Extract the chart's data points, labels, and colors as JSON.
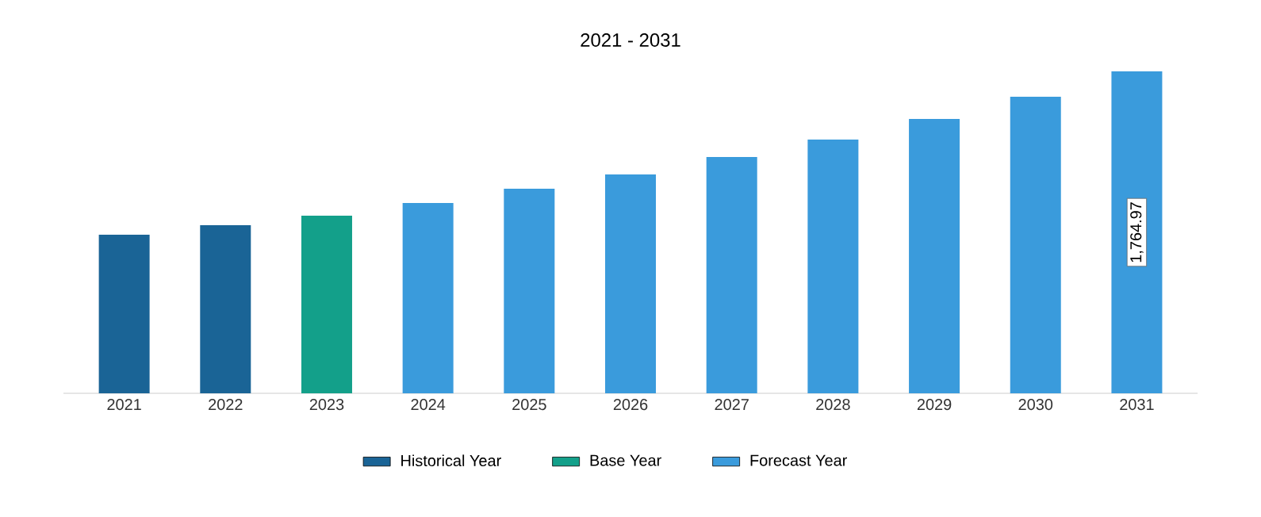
{
  "chart_data": {
    "type": "bar",
    "title": "2021 - 2031",
    "categories": [
      "2021",
      "2022",
      "2023",
      "2024",
      "2025",
      "2026",
      "2027",
      "2028",
      "2029",
      "2030",
      "2031"
    ],
    "legend": "bottom",
    "series": [
      {
        "name": "Historical Year",
        "color": "#1a6496",
        "values": [
          869,
          922,
          null,
          null,
          null,
          null,
          null,
          null,
          null,
          null,
          null
        ]
      },
      {
        "name": "Base Year",
        "color": "#13a08a",
        "values": [
          null,
          null,
          974,
          null,
          null,
          null,
          null,
          null,
          null,
          null,
          null
        ]
      },
      {
        "name": "Forecast Year",
        "color": "#3a9bdc",
        "values": [
          null,
          null,
          null,
          1043,
          1122,
          1200,
          1296,
          1391,
          1504,
          1626,
          1764.97
        ],
        "value_labels": [
          null,
          null,
          null,
          null,
          null,
          null,
          null,
          null,
          null,
          null,
          "1,764.97"
        ]
      }
    ]
  }
}
